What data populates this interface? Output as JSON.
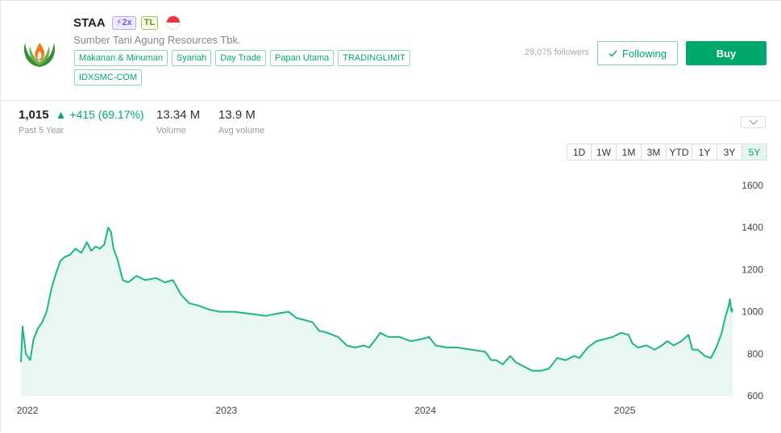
{
  "stock": {
    "ticker": "STAA",
    "badge_leverage": "2x",
    "badge_tl": "TL",
    "company_name": "Sumber Tani Agung Resources Tbk.",
    "tags": [
      "Makanan & Minuman",
      "Syariah",
      "Day Trade",
      "Papan Utama",
      "TRADINGLIMIT",
      "IDXSMC-COM"
    ],
    "followers": "28,075 followers",
    "following_label": "Following",
    "buy_label": "Buy",
    "logo_icon": "palm-flame-logo",
    "flag_icon": "indonesia-flag-icon"
  },
  "stats": {
    "price": "1,015",
    "change": "+415 (69.17%)",
    "period": "Past 5 Year",
    "volume": "13.34 M",
    "volume_label": "Volume",
    "avg_volume": "13.9 M",
    "avg_volume_label": "Avg volume"
  },
  "ranges": [
    "1D",
    "1W",
    "1M",
    "3M",
    "YTD",
    "1Y",
    "3Y",
    "5Y"
  ],
  "active_range": "5Y",
  "colors": {
    "accent": "#00a86b",
    "line": "#1db67e",
    "area": "#e8f7f0"
  },
  "chart_data": {
    "type": "area",
    "x_tick_labels": [
      "2022",
      "2023",
      "2024",
      "2025"
    ],
    "y_ticks": [
      600,
      800,
      1000,
      1200,
      1400,
      1600
    ],
    "ylim": [
      600,
      1600
    ],
    "xlim": [
      "2021-12-20",
      "2025-07-18"
    ],
    "grid": false,
    "series": [
      {
        "points": [
          [
            "2021-12-20",
            760
          ],
          [
            "2021-12-23",
            930
          ],
          [
            "2021-12-29",
            800
          ],
          [
            "2022-01-06",
            770
          ],
          [
            "2022-01-12",
            870
          ],
          [
            "2022-01-20",
            920
          ],
          [
            "2022-01-28",
            950
          ],
          [
            "2022-02-05",
            1000
          ],
          [
            "2022-02-14",
            1110
          ],
          [
            "2022-02-22",
            1180
          ],
          [
            "2022-03-02",
            1240
          ],
          [
            "2022-03-10",
            1260
          ],
          [
            "2022-03-20",
            1270
          ],
          [
            "2022-03-30",
            1300
          ],
          [
            "2022-04-10",
            1280
          ],
          [
            "2022-04-20",
            1330
          ],
          [
            "2022-04-28",
            1290
          ],
          [
            "2022-05-06",
            1310
          ],
          [
            "2022-05-14",
            1300
          ],
          [
            "2022-05-22",
            1320
          ],
          [
            "2022-05-29",
            1400
          ],
          [
            "2022-06-03",
            1380
          ],
          [
            "2022-06-08",
            1300
          ],
          [
            "2022-06-15",
            1250
          ],
          [
            "2022-06-25",
            1150
          ],
          [
            "2022-07-05",
            1140
          ],
          [
            "2022-07-20",
            1170
          ],
          [
            "2022-08-05",
            1150
          ],
          [
            "2022-08-25",
            1160
          ],
          [
            "2022-09-10",
            1140
          ],
          [
            "2022-09-25",
            1150
          ],
          [
            "2022-10-10",
            1080
          ],
          [
            "2022-10-25",
            1040
          ],
          [
            "2022-11-10",
            1030
          ],
          [
            "2022-12-01",
            1010
          ],
          [
            "2022-12-20",
            1000
          ],
          [
            "2023-01-15",
            1000
          ],
          [
            "2023-02-15",
            990
          ],
          [
            "2023-03-15",
            980
          ],
          [
            "2023-04-01",
            990
          ],
          [
            "2023-04-25",
            1000
          ],
          [
            "2023-05-10",
            970
          ],
          [
            "2023-05-25",
            960
          ],
          [
            "2023-06-08",
            950
          ],
          [
            "2023-06-20",
            910
          ],
          [
            "2023-07-05",
            900
          ],
          [
            "2023-07-25",
            880
          ],
          [
            "2023-08-10",
            840
          ],
          [
            "2023-08-25",
            830
          ],
          [
            "2023-09-10",
            840
          ],
          [
            "2023-09-20",
            830
          ],
          [
            "2023-10-05",
            880
          ],
          [
            "2023-10-10",
            900
          ],
          [
            "2023-10-25",
            880
          ],
          [
            "2023-11-15",
            880
          ],
          [
            "2023-12-05",
            860
          ],
          [
            "2023-12-25",
            870
          ],
          [
            "2024-01-08",
            880
          ],
          [
            "2024-01-20",
            840
          ],
          [
            "2024-02-10",
            830
          ],
          [
            "2024-03-01",
            830
          ],
          [
            "2024-03-25",
            820
          ],
          [
            "2024-04-20",
            810
          ],
          [
            "2024-05-01",
            770
          ],
          [
            "2024-05-10",
            770
          ],
          [
            "2024-05-22",
            750
          ],
          [
            "2024-06-05",
            790
          ],
          [
            "2024-06-15",
            760
          ],
          [
            "2024-06-30",
            740
          ],
          [
            "2024-07-15",
            720
          ],
          [
            "2024-08-01",
            720
          ],
          [
            "2024-08-15",
            730
          ],
          [
            "2024-08-30",
            780
          ],
          [
            "2024-09-15",
            770
          ],
          [
            "2024-09-30",
            790
          ],
          [
            "2024-10-10",
            780
          ],
          [
            "2024-10-25",
            830
          ],
          [
            "2024-11-10",
            860
          ],
          [
            "2024-11-25",
            870
          ],
          [
            "2024-12-10",
            880
          ],
          [
            "2024-12-25",
            900
          ],
          [
            "2025-01-08",
            890
          ],
          [
            "2025-01-15",
            850
          ],
          [
            "2025-01-25",
            830
          ],
          [
            "2025-02-10",
            840
          ],
          [
            "2025-02-25",
            820
          ],
          [
            "2025-03-10",
            840
          ],
          [
            "2025-03-20",
            860
          ],
          [
            "2025-04-01",
            840
          ],
          [
            "2025-04-15",
            860
          ],
          [
            "2025-04-28",
            890
          ],
          [
            "2025-05-05",
            820
          ],
          [
            "2025-05-15",
            820
          ],
          [
            "2025-05-28",
            790
          ],
          [
            "2025-06-08",
            780
          ],
          [
            "2025-06-18",
            830
          ],
          [
            "2025-06-28",
            900
          ],
          [
            "2025-07-05",
            980
          ],
          [
            "2025-07-10",
            1020
          ],
          [
            "2025-07-13",
            1060
          ],
          [
            "2025-07-16",
            1000
          ],
          [
            "2025-07-18",
            1015
          ]
        ]
      }
    ]
  }
}
